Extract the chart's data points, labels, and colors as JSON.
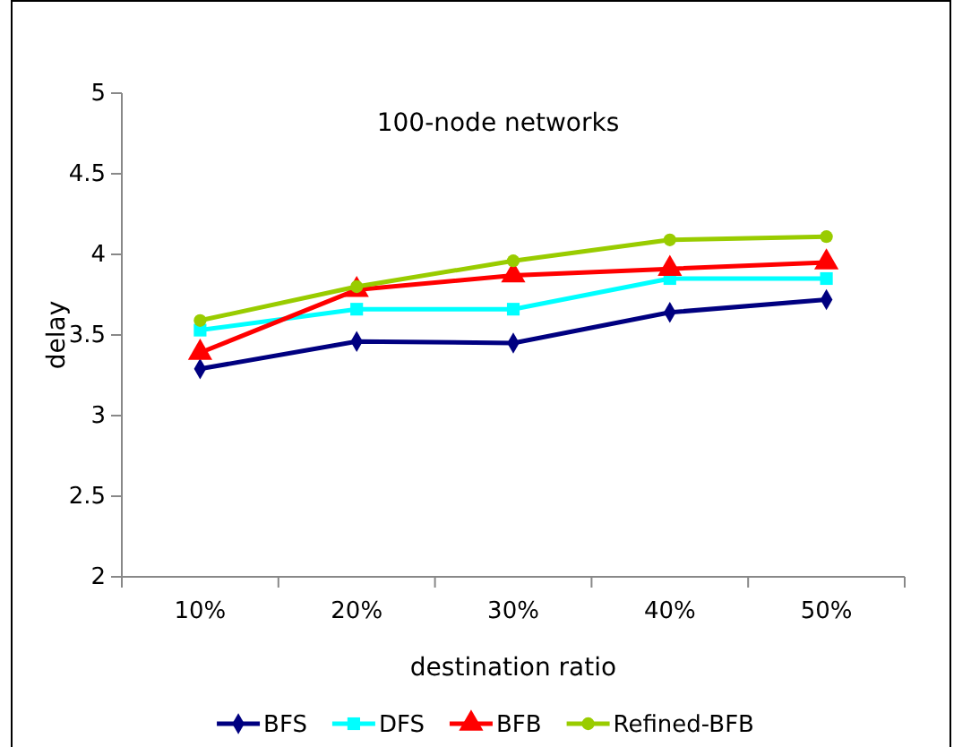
{
  "chart_data": {
    "type": "line",
    "title": "100-node networks",
    "xlabel": "destination ratio",
    "ylabel": "delay",
    "categories": [
      "10%",
      "20%",
      "30%",
      "40%",
      "50%"
    ],
    "series": [
      {
        "name": "BFS",
        "color": "#000080",
        "marker": "diamond",
        "values": [
          3.29,
          3.46,
          3.45,
          3.64,
          3.72
        ]
      },
      {
        "name": "DFS",
        "color": "#00ffff",
        "marker": "square",
        "values": [
          3.53,
          3.66,
          3.66,
          3.85,
          3.85
        ]
      },
      {
        "name": "BFB",
        "color": "#ff0000",
        "marker": "triangle",
        "values": [
          3.39,
          3.78,
          3.87,
          3.91,
          3.95
        ]
      },
      {
        "name": "Refined-BFB",
        "color": "#99cc00",
        "marker": "circle",
        "values": [
          3.59,
          3.8,
          3.96,
          4.09,
          4.11
        ]
      }
    ],
    "ylim": [
      2,
      5
    ],
    "yticks": [
      2,
      2.5,
      3,
      3.5,
      4,
      4.5,
      5
    ],
    "grid": false,
    "legend": "bottom"
  }
}
